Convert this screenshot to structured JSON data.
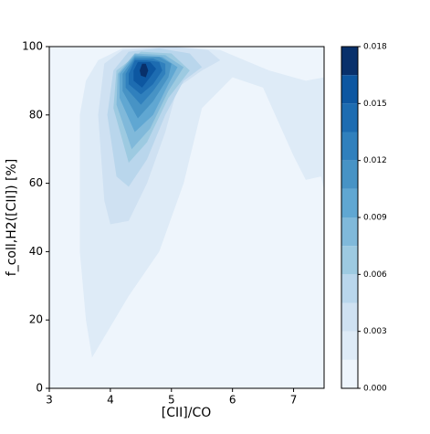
{
  "chart_data": {
    "type": "contour",
    "xlabel": "[CII]/CO",
    "ylabel": "f_coll,H2([CII]) [%]",
    "xlim": [
      3,
      7.5
    ],
    "ylim": [
      0,
      100
    ],
    "xticks": [
      3,
      4,
      5,
      6,
      7
    ],
    "yticks": [
      0,
      20,
      40,
      60,
      80,
      100
    ],
    "levels": [
      0,
      0.0015,
      0.003,
      0.0045,
      0.006,
      0.0075,
      0.009,
      0.0105,
      0.012,
      0.0135,
      0.015,
      0.0165,
      0.018
    ],
    "colors": [
      "#eef5fc",
      "#deebf7",
      "#cfe1f2",
      "#b9d6ec",
      "#9dcae1",
      "#80b9da",
      "#60a7d2",
      "#4793c5",
      "#3080bd",
      "#1d6cb1",
      "#0d57a1",
      "#08306b"
    ],
    "colorbar_ticks": [
      {
        "value": 0,
        "label": "0.000"
      },
      {
        "value": 0.003,
        "label": "0.003"
      },
      {
        "value": 0.006,
        "label": "0.006"
      },
      {
        "value": 0.009,
        "label": "0.009"
      },
      {
        "value": 0.012,
        "label": "0.012"
      },
      {
        "value": 0.015,
        "label": "0.015"
      },
      {
        "value": 0.018,
        "label": "0.018"
      }
    ],
    "contours": [
      {
        "points": [
          [
            3.7,
            9
          ],
          [
            4.3,
            27
          ],
          [
            4.8,
            40
          ],
          [
            5.2,
            60
          ],
          [
            5.5,
            82
          ],
          [
            6,
            91
          ],
          [
            6.5,
            88
          ],
          [
            7,
            68
          ],
          [
            7.2,
            61
          ],
          [
            7.45,
            62
          ],
          [
            7.5,
            58
          ],
          [
            7.5,
            91
          ],
          [
            7.2,
            90
          ],
          [
            6.6,
            93
          ],
          [
            6.2,
            96
          ],
          [
            5.8,
            99
          ],
          [
            5,
            100
          ],
          [
            4.2,
            99.5
          ],
          [
            3.8,
            96
          ],
          [
            3.6,
            90
          ],
          [
            3.5,
            80
          ],
          [
            3.5,
            40
          ],
          [
            3.6,
            20
          ]
        ]
      },
      {
        "points": [
          [
            3.8,
            80
          ],
          [
            3.9,
            55
          ],
          [
            4,
            48
          ],
          [
            4.3,
            49
          ],
          [
            4.6,
            60
          ],
          [
            4.9,
            75
          ],
          [
            5.1,
            88
          ],
          [
            5.5,
            93
          ],
          [
            5.8,
            96
          ],
          [
            5.6,
            99
          ],
          [
            5,
            100
          ],
          [
            4.2,
            99
          ],
          [
            3.9,
            95
          ]
        ]
      },
      {
        "points": [
          [
            3.95,
            80
          ],
          [
            4.1,
            62
          ],
          [
            4.3,
            59
          ],
          [
            4.6,
            67
          ],
          [
            4.9,
            80
          ],
          [
            5.2,
            90
          ],
          [
            5.5,
            94
          ],
          [
            5.3,
            98
          ],
          [
            4.8,
            99.5
          ],
          [
            4.3,
            98.5
          ],
          [
            4.05,
            93
          ]
        ]
      },
      {
        "points": [
          [
            4.05,
            82
          ],
          [
            4.3,
            66
          ],
          [
            4.6,
            72
          ],
          [
            4.95,
            85
          ],
          [
            5.3,
            93
          ],
          [
            5,
            98
          ],
          [
            4.5,
            98.5
          ],
          [
            4.1,
            93
          ]
        ]
      },
      {
        "points": [
          [
            4.1,
            83
          ],
          [
            4.35,
            70
          ],
          [
            4.65,
            76
          ],
          [
            4.95,
            87
          ],
          [
            5.2,
            94
          ],
          [
            4.9,
            97.5
          ],
          [
            4.4,
            98
          ],
          [
            4.12,
            92
          ]
        ]
      },
      {
        "points": [
          [
            4.15,
            85
          ],
          [
            4.4,
            75
          ],
          [
            4.7,
            80
          ],
          [
            4.95,
            89
          ],
          [
            5.1,
            94
          ],
          [
            4.85,
            97
          ],
          [
            4.4,
            97.5
          ],
          [
            4.15,
            92
          ]
        ]
      },
      {
        "points": [
          [
            4.2,
            87
          ],
          [
            4.45,
            79
          ],
          [
            4.7,
            84
          ],
          [
            4.95,
            91
          ],
          [
            5,
            95
          ],
          [
            4.8,
            97
          ],
          [
            4.4,
            97
          ],
          [
            4.2,
            92
          ]
        ]
      },
      {
        "points": [
          [
            4.25,
            88
          ],
          [
            4.5,
            83
          ],
          [
            4.7,
            87
          ],
          [
            4.9,
            92
          ],
          [
            4.9,
            95
          ],
          [
            4.7,
            96.5
          ],
          [
            4.4,
            96.5
          ],
          [
            4.25,
            92
          ]
        ]
      },
      {
        "points": [
          [
            4.3,
            89
          ],
          [
            4.5,
            86
          ],
          [
            4.7,
            89
          ],
          [
            4.85,
            93
          ],
          [
            4.8,
            95.5
          ],
          [
            4.6,
            96
          ],
          [
            4.4,
            96
          ],
          [
            4.3,
            92
          ]
        ]
      },
      {
        "points": [
          [
            4.38,
            90
          ],
          [
            4.52,
            88
          ],
          [
            4.65,
            91
          ],
          [
            4.75,
            93.5
          ],
          [
            4.65,
            95.5
          ],
          [
            4.45,
            95.5
          ],
          [
            4.38,
            93
          ]
        ]
      },
      {
        "points": [
          [
            4.5,
            91.5
          ],
          [
            4.58,
            91
          ],
          [
            4.62,
            93
          ],
          [
            4.58,
            95
          ],
          [
            4.52,
            95
          ],
          [
            4.48,
            93
          ]
        ]
      }
    ]
  }
}
